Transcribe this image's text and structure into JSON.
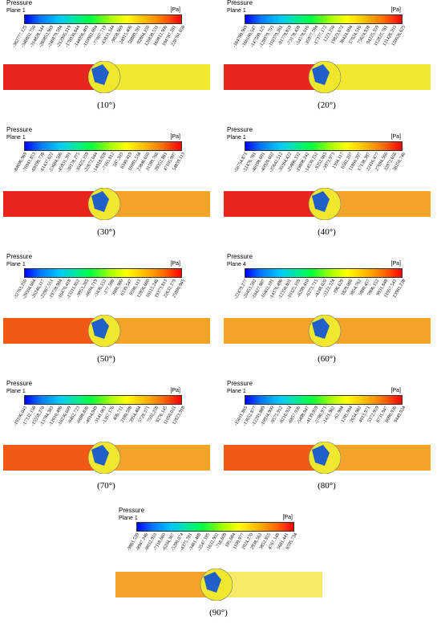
{
  "colors": {
    "red": "#e8261b",
    "orange_red": "#f05a14",
    "orange": "#f3a32a",
    "yellow": "#f1e72c",
    "pale_yellow": "#f8e96a",
    "blue": "#2260c9"
  },
  "panels": [
    {
      "title": "Pressure",
      "plane": "Plane 1",
      "unit": "[Pa]",
      "caption": "(10°)",
      "ticks": [
        "-382777.125",
        "-348802.750",
        "-314828.344",
        "-280853.969",
        "-246879.594",
        "-212905.219",
        "-178930.844",
        "-144956.469",
        "-110982.094",
        "-77007.719",
        "-43033.344",
        "-9058.969",
        "24915.406",
        "58889.781",
        "92864.156",
        "126838.531",
        "160812.906",
        "194787.281",
        "228761.656"
      ],
      "upstream_color": "#e8261b",
      "downstream_color": "#f1e72c"
    },
    {
      "title": "Pressure",
      "plane": "Plane 1",
      "unit": "[Pa]",
      "caption": "(20°)",
      "ticks": [
        "-184780.969",
        "-166180.547",
        "-147580.125",
        "-128979.703",
        "-110379.281",
        "-91778.859",
        "-73178.438",
        "-54578.016",
        "-35977.594",
        "-17377.172",
        "1223.250",
        "19823.672",
        "38424.094",
        "57024.516",
        "75624.938",
        "94225.359",
        "112825.781",
        "131426.203",
        "150026.625"
      ],
      "upstream_color": "#e8261b",
      "downstream_color": "#f1e72c"
    },
    {
      "title": "Pressure",
      "plane": "Plane 1",
      "unit": "[Pa]",
      "caption": "(30°)",
      "ticks": [
        "-84696.969",
        "-76943.853",
        "-69190.738",
        "-61437.622",
        "-53684.506",
        "-45931.391",
        "-38178.275",
        "-30425.159",
        "-22672.044",
        "-14918.928",
        "-7165.812",
        "587.303",
        "8340.419",
        "16093.534",
        "23846.650",
        "31599.766",
        "39352.881",
        "47105.997",
        "54859.113"
      ],
      "upstream_color": "#e8261b",
      "downstream_color": "#f3a32a"
    },
    {
      "title": "Pressure",
      "plane": "Plane 1",
      "unit": "[Pa]",
      "caption": "(40°)",
      "ticks": [
        "-56754.871",
        "-51476.781",
        "-46198.691",
        "-40920.602",
        "-35642.512",
        "-30364.422",
        "-25086.332",
        "-19808.242",
        "-14530.152",
        "-9252.063",
        "-3973.973",
        "1304.117",
        "6582.207",
        "11860.297",
        "17138.387",
        "22416.477",
        "27694.566",
        "32972.656",
        "38250.746"
      ],
      "upstream_color": "#e8261b",
      "downstream_color": "#f3a32a"
    },
    {
      "title": "Pressure",
      "plane": "Plane 1",
      "unit": "[Pa]",
      "caption": "(50°)",
      "ticks": [
        "-32763.250",
        "-29504.684",
        "-26246.117",
        "-22987.551",
        "-19728.984",
        "-16470.418",
        "-13211.852",
        "-9953.285",
        "-6694.719",
        "-3436.152",
        "-177.586",
        "3080.980",
        "6339.547",
        "9598.113",
        "12856.680",
        "16115.246",
        "19373.813",
        "22632.379",
        "25890.945"
      ],
      "upstream_color": "#f05a14",
      "downstream_color": "#f3a32a"
    },
    {
      "title": "Pressure",
      "plane": "Plane 4",
      "unit": "[Pa]",
      "caption": "(60°)",
      "ticks": [
        "-22479.277",
        "-20453.582",
        "-18427.887",
        "-16402.191",
        "-14376.496",
        "-12350.801",
        "-10325.105",
        "-8299.410",
        "-6273.715",
        "-4248.020",
        "-2222.324",
        "-196.629",
        "1829.066",
        "3854.762",
        "5880.457",
        "7906.152",
        "9931.848",
        "11957.543",
        "13983.238"
      ],
      "upstream_color": "#f3a32a",
      "downstream_color": "#f3a32a"
    },
    {
      "title": "Pressure",
      "plane": "Plane 1",
      "unit": "[Pa]",
      "caption": "(70°)",
      "ticks": [
        "-19106.043",
        "-17332.156",
        "-15558.270",
        "-13784.383",
        "-12010.496",
        "-10236.609",
        "-8462.723",
        "-6688.836",
        "-4914.949",
        "-3141.063",
        "-1367.176",
        "406.711",
        "2180.598",
        "3954.484",
        "5728.371",
        "7502.258",
        "9276.145",
        "11050.031",
        "12823.918"
      ],
      "upstream_color": "#f05a14",
      "downstream_color": "#f3a32a"
    },
    {
      "title": "Pressure",
      "plane": "Plane 1",
      "unit": "[Pa]",
      "caption": "(80°)",
      "ticks": [
        "-15011.865",
        "-13652.877",
        "-12293.889",
        "-10934.900",
        "-9575.912",
        "-8216.924",
        "-6857.936",
        "-5498.947",
        "-4139.959",
        "-2780.971",
        "-1421.982",
        "-62.994",
        "1295.994",
        "2654.982",
        "4013.971",
        "5372.959",
        "6731.947",
        "8090.936",
        "9449.924"
      ],
      "upstream_color": "#f05a14",
      "downstream_color": "#f3a32a"
    },
    {
      "title": "Pressure",
      "plane": "Plane 1",
      "unit": "[Pa]",
      "caption": "(90°)",
      "ticks": [
        "-9861.539",
        "-8947.246",
        "-8032.953",
        "-7118.660",
        "-6204.367",
        "-5290.074",
        "-4375.781",
        "-3461.488",
        "-2547.195",
        "-1632.902",
        "-718.609",
        "195.684",
        "1109.977",
        "2024.270",
        "2938.563",
        "3852.855",
        "4767.148",
        "5681.441",
        "6595.734"
      ],
      "upstream_color": "#f3a32a",
      "downstream_color": "#f8e96a"
    }
  ]
}
